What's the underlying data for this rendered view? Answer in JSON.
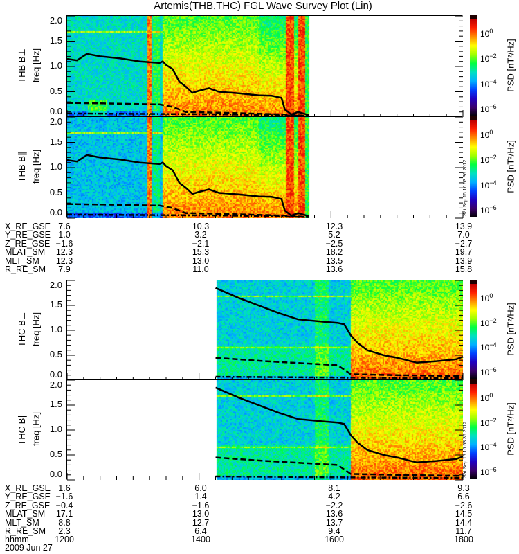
{
  "title": "Artemis(THB,THC) FGL Wave Survey Plot (Lin)",
  "timestamp": "Sat Sep 15 16:53:36 2012",
  "colorscale": {
    "label": "PSD [nT²/Hz]",
    "log10_range": [
      -6.8,
      1.3
    ],
    "tick_exponents": [
      "0",
      "-2",
      "-4",
      "-6"
    ],
    "tick_base": "10",
    "stops": [
      "#000000",
      "#3a006a",
      "#2000c0",
      "#0040ff",
      "#00b0ff",
      "#00e0c0",
      "#00ff40",
      "#a0ff00",
      "#ffff00",
      "#ff9000",
      "#ff2000",
      "#c00000"
    ]
  },
  "chart_data": [
    {
      "type": "heatmap",
      "panel": "THB B⊥",
      "ylabel": "freq [Hz]",
      "ylim": [
        0,
        2.0
      ],
      "yticks": [
        "0.0",
        "0.5",
        "1.0",
        "1.5",
        "2.0"
      ],
      "xlim_hours": [
        12,
        18
      ],
      "data_coverage_hours": [
        12,
        15.66
      ],
      "solid_line": [
        [
          12,
          1.15
        ],
        [
          12.15,
          1.12
        ],
        [
          12.3,
          1.25
        ],
        [
          12.5,
          1.2
        ],
        [
          12.8,
          1.16
        ],
        [
          13.1,
          1.1
        ],
        [
          13.4,
          1.07
        ],
        [
          13.45,
          1.1
        ],
        [
          13.5,
          1.03
        ],
        [
          13.6,
          0.95
        ],
        [
          13.7,
          0.7
        ],
        [
          13.8,
          0.6
        ],
        [
          13.9,
          0.48
        ],
        [
          14.0,
          0.52
        ],
        [
          14.15,
          0.57
        ],
        [
          14.3,
          0.5
        ],
        [
          14.6,
          0.47
        ],
        [
          14.9,
          0.43
        ],
        [
          15.1,
          0.42
        ],
        [
          15.25,
          0.38
        ],
        [
          15.3,
          0.15
        ],
        [
          15.4,
          0.05
        ],
        [
          15.5,
          0.1
        ],
        [
          15.66,
          0.04
        ]
      ],
      "dashed_line": [
        [
          12,
          0.28
        ],
        [
          12.5,
          0.27
        ],
        [
          13.4,
          0.25
        ],
        [
          13.6,
          0.2
        ],
        [
          13.8,
          0.1
        ],
        [
          14.5,
          0.08
        ],
        [
          15.3,
          0.05
        ],
        [
          15.66,
          0.02
        ]
      ],
      "dashdot_line": [
        [
          12,
          0.07
        ],
        [
          13.4,
          0.06
        ],
        [
          14.5,
          0.05
        ],
        [
          15.66,
          0.02
        ]
      ]
    },
    {
      "type": "heatmap",
      "panel": "THB B∥",
      "ylabel": "freq [Hz]",
      "ylim": [
        0,
        2.0
      ],
      "yticks": [
        "0.0",
        "0.5",
        "1.0",
        "1.5",
        "2.0"
      ],
      "xlim_hours": [
        12,
        18
      ],
      "data_coverage_hours": [
        12,
        15.66
      ],
      "solid_line": [
        [
          12,
          1.15
        ],
        [
          12.15,
          1.12
        ],
        [
          12.3,
          1.25
        ],
        [
          12.5,
          1.2
        ],
        [
          12.8,
          1.16
        ],
        [
          13.1,
          1.1
        ],
        [
          13.4,
          1.07
        ],
        [
          13.45,
          1.1
        ],
        [
          13.5,
          1.03
        ],
        [
          13.6,
          0.95
        ],
        [
          13.7,
          0.7
        ],
        [
          13.8,
          0.6
        ],
        [
          13.9,
          0.48
        ],
        [
          14.0,
          0.52
        ],
        [
          14.15,
          0.57
        ],
        [
          14.3,
          0.5
        ],
        [
          14.6,
          0.47
        ],
        [
          14.9,
          0.43
        ],
        [
          15.1,
          0.42
        ],
        [
          15.25,
          0.38
        ],
        [
          15.3,
          0.15
        ],
        [
          15.4,
          0.05
        ],
        [
          15.5,
          0.1
        ],
        [
          15.66,
          0.04
        ]
      ],
      "dashed_line": [
        [
          12,
          0.28
        ],
        [
          12.5,
          0.27
        ],
        [
          13.4,
          0.25
        ],
        [
          13.6,
          0.2
        ],
        [
          13.8,
          0.1
        ],
        [
          14.5,
          0.08
        ],
        [
          15.3,
          0.05
        ],
        [
          15.66,
          0.02
        ]
      ],
      "dashdot_line": [
        [
          12,
          0.07
        ],
        [
          13.4,
          0.06
        ],
        [
          14.5,
          0.05
        ],
        [
          15.66,
          0.02
        ]
      ]
    },
    {
      "type": "heatmap",
      "panel": "THC B⊥",
      "ylabel": "freq [Hz]",
      "ylim": [
        0,
        2.0
      ],
      "yticks": [
        "0.0",
        "0.5",
        "1.0",
        "1.5",
        "2.0"
      ],
      "xlim_hours": [
        12,
        18
      ],
      "data_coverage_hours": [
        14.25,
        18
      ],
      "solid_line": [
        [
          14.25,
          1.85
        ],
        [
          14.6,
          1.65
        ],
        [
          15.0,
          1.45
        ],
        [
          15.2,
          1.35
        ],
        [
          15.5,
          1.22
        ],
        [
          15.9,
          1.17
        ],
        [
          16.1,
          1.15
        ],
        [
          16.2,
          1.12
        ],
        [
          16.3,
          0.9
        ],
        [
          16.4,
          0.75
        ],
        [
          16.55,
          0.6
        ],
        [
          16.8,
          0.5
        ],
        [
          17.0,
          0.45
        ],
        [
          17.3,
          0.35
        ],
        [
          17.6,
          0.38
        ],
        [
          17.9,
          0.42
        ],
        [
          18.0,
          0.47
        ]
      ],
      "dashed_line": [
        [
          14.25,
          0.45
        ],
        [
          15.0,
          0.38
        ],
        [
          16.1,
          0.3
        ],
        [
          16.3,
          0.12
        ],
        [
          17.0,
          0.1
        ],
        [
          18.0,
          0.08
        ]
      ],
      "dashdot_line": [
        [
          14.25,
          0.07
        ],
        [
          16.3,
          0.05
        ],
        [
          18.0,
          0.04
        ]
      ]
    },
    {
      "type": "heatmap",
      "panel": "THC B∥",
      "ylabel": "freq [Hz]",
      "ylim": [
        0,
        2.0
      ],
      "yticks": [
        "0.0",
        "0.5",
        "1.0",
        "1.5",
        "2.0"
      ],
      "xlim_hours": [
        12,
        18
      ],
      "data_coverage_hours": [
        14.25,
        18
      ],
      "solid_line": [
        [
          14.25,
          1.85
        ],
        [
          14.6,
          1.65
        ],
        [
          15.0,
          1.45
        ],
        [
          15.2,
          1.35
        ],
        [
          15.5,
          1.22
        ],
        [
          15.9,
          1.17
        ],
        [
          16.1,
          1.15
        ],
        [
          16.2,
          1.12
        ],
        [
          16.3,
          0.9
        ],
        [
          16.4,
          0.75
        ],
        [
          16.55,
          0.6
        ],
        [
          16.8,
          0.5
        ],
        [
          17.0,
          0.45
        ],
        [
          17.3,
          0.35
        ],
        [
          17.6,
          0.38
        ],
        [
          17.9,
          0.42
        ],
        [
          18.0,
          0.47
        ]
      ],
      "dashed_line": [
        [
          14.25,
          0.45
        ],
        [
          15.0,
          0.38
        ],
        [
          16.1,
          0.3
        ],
        [
          16.3,
          0.12
        ],
        [
          17.0,
          0.1
        ],
        [
          18.0,
          0.08
        ]
      ],
      "dashdot_line": [
        [
          14.25,
          0.07
        ],
        [
          16.3,
          0.05
        ],
        [
          18.0,
          0.04
        ]
      ]
    }
  ],
  "ephemeris_thb": {
    "labels": [
      "X_RE_GSE",
      "Y_RE_GSE",
      "Z_RE_GSE",
      "MLAT_SM",
      "MLT_SM",
      "R_RE_SM"
    ],
    "columns": [
      [
        "7.6",
        "1.0",
        "−1.6",
        "12.3",
        "12.3",
        "7.9"
      ],
      [
        "10.3",
        "3.2",
        "−2.1",
        "15.3",
        "13.0",
        "11.0"
      ],
      [
        "12.3",
        "5.2",
        "−2.5",
        "18.2",
        "13.5",
        "13.6"
      ],
      [
        "13.9",
        "7.0",
        "−2.7",
        "19.7",
        "13.9",
        "15.8"
      ]
    ]
  },
  "ephemeris_thc": {
    "labels": [
      "X_RE_GSE",
      "Y_RE_GSE",
      "Z_RE_GSE",
      "MLAT_SM",
      "MLT_SM",
      "R_RE_SM",
      "hhmm"
    ],
    "columns": [
      [
        "1.6",
        "−1.6",
        "−0.4",
        "17.1",
        "8.8",
        "2.3",
        "1200"
      ],
      [
        "6.0",
        "1.4",
        "−1.6",
        "13.0",
        "12.7",
        "6.4",
        "1400"
      ],
      [
        "8.1",
        "4.2",
        "−2.2",
        "13.6",
        "13.7",
        "9.4",
        "1600"
      ],
      [
        "9.3",
        "6.6",
        "−2.6",
        "14.5",
        "14.4",
        "11.7",
        "1800"
      ]
    ],
    "date": "2009 Jun 27"
  }
}
